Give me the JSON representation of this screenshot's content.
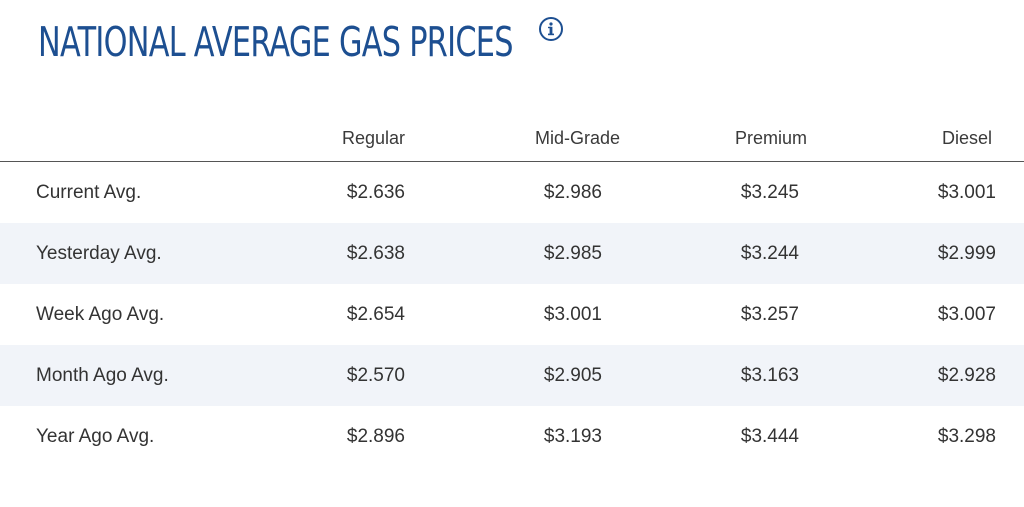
{
  "header": {
    "title": "NATIONAL AVERAGE GAS PRICES",
    "info_icon": "info-icon"
  },
  "table": {
    "columns": [
      "Regular",
      "Mid-Grade",
      "Premium",
      "Diesel"
    ],
    "rows": [
      {
        "label": "Current Avg.",
        "values": [
          "$2.636",
          "$2.986",
          "$3.245",
          "$3.001"
        ]
      },
      {
        "label": "Yesterday Avg.",
        "values": [
          "$2.638",
          "$2.985",
          "$3.244",
          "$2.999"
        ]
      },
      {
        "label": "Week Ago Avg.",
        "values": [
          "$2.654",
          "$3.001",
          "$3.257",
          "$3.007"
        ]
      },
      {
        "label": "Month Ago Avg.",
        "values": [
          "$2.570",
          "$2.905",
          "$3.163",
          "$2.928"
        ]
      },
      {
        "label": "Year Ago Avg.",
        "values": [
          "$2.896",
          "$3.193",
          "$3.444",
          "$3.298"
        ]
      }
    ]
  },
  "colors": {
    "title": "#1d4f91",
    "shaded_row": "#f1f4f9",
    "text": "#333333"
  }
}
